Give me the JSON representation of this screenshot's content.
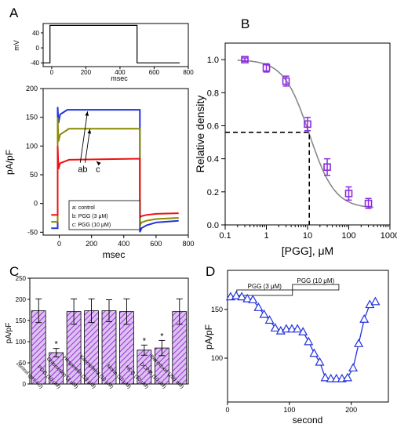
{
  "chart_data": [
    {
      "panel": "A",
      "part": "voltage-protocol",
      "type": "line",
      "xlabel": "msec",
      "ylabel": "mV",
      "xlim": [
        -50,
        800
      ],
      "ylim": [
        -50,
        65
      ],
      "xticks": [
        "0",
        "200",
        "400",
        "600",
        "800"
      ],
      "yticks": [
        "-40",
        "0",
        "40"
      ],
      "series": [
        {
          "x": [
            -50,
            -10,
            -10,
            500,
            500,
            750
          ],
          "values": [
            -40,
            -40,
            60,
            60,
            -40,
            -40
          ],
          "color": "#000000"
        }
      ]
    },
    {
      "panel": "A",
      "part": "current-traces",
      "type": "line",
      "xlabel": "msec",
      "ylabel": "pA/pF",
      "xlim": [
        -100,
        800
      ],
      "ylim": [
        -55,
        200
      ],
      "xticks": [
        "0",
        "200",
        "400",
        "600",
        "800"
      ],
      "yticks": [
        "-50",
        "0",
        "50",
        "100",
        "150",
        "200"
      ],
      "trace_labels": [
        "a",
        "b",
        "c"
      ],
      "legend": {
        "position": "bottom-right",
        "entries": [
          "a: control",
          "b: PGG (3 μM)",
          "c: PGG (10 μM)"
        ]
      },
      "series": [
        {
          "name": "a: control",
          "color": "#2233dd",
          "x": [
            -50,
            -10,
            -10,
            -5,
            5,
            50,
            500,
            500,
            510,
            540,
            600,
            740
          ],
          "values": [
            -43,
            -43,
            168,
            140,
            155,
            163,
            163,
            -50,
            -43,
            -38,
            -33,
            -30
          ]
        },
        {
          "name": "b: PGG (3 μM)",
          "color": "#8a8a00",
          "x": [
            -50,
            -10,
            -10,
            -5,
            5,
            60,
            500,
            500,
            510,
            540,
            600,
            740
          ],
          "values": [
            -32,
            -32,
            150,
            108,
            120,
            130,
            130,
            -38,
            -33,
            -30,
            -27,
            -25
          ]
        },
        {
          "name": "c: PGG (10 μM)",
          "color": "#ee1111",
          "x": [
            -50,
            -10,
            -10,
            -5,
            5,
            60,
            500,
            500,
            510,
            540,
            600,
            740
          ],
          "values": [
            -20,
            -20,
            100,
            60,
            70,
            76,
            78,
            -24,
            -22,
            -20,
            -18,
            -17
          ]
        }
      ]
    },
    {
      "panel": "B",
      "type": "scatter",
      "xlabel": "[PGG], μM",
      "ylabel": "Relative density",
      "xscale": "log",
      "xlim": [
        0.1,
        1000
      ],
      "ylim": [
        0,
        1.1
      ],
      "xticks": [
        "0.1",
        "1",
        "10",
        "100",
        "1000"
      ],
      "yticks": [
        "0.0",
        "0.2",
        "0.4",
        "0.6",
        "0.8",
        "1.0"
      ],
      "series": [
        {
          "x": [
            0.3,
            1,
            3,
            10,
            30,
            100,
            300
          ],
          "values": [
            1.0,
            0.95,
            0.87,
            0.61,
            0.35,
            0.19,
            0.13
          ],
          "error": [
            0.01,
            0.025,
            0.03,
            0.04,
            0.05,
            0.04,
            0.03
          ],
          "color": "#8a2be2"
        }
      ],
      "fit": {
        "type": "hill",
        "top": 1.0,
        "bottom": 0.1,
        "ic50": 11.0,
        "hill": 1.4,
        "color": "#888888"
      },
      "reference": {
        "x": 11.0,
        "y": 0.56
      }
    },
    {
      "panel": "C",
      "type": "bar",
      "ylabel": "pA/pF",
      "ylim": [
        0,
        250
      ],
      "yticks": [
        "0",
        "50",
        "100",
        "150",
        "200",
        "250"
      ],
      "categories": [
        "control (pH 4.0)",
        "PGG (10 μM)",
        "Chlorotoxin (1 μM)",
        "Hesperetin (10 μM)",
        "Kaempferol (10 μM)",
        "Morin (10 μM)",
        "HCQ (10 μM)",
        "DCPIB (10 μM)",
        "Iberiotoxin (200 nM)"
      ],
      "values": [
        173,
        74,
        171,
        173,
        173,
        171,
        80,
        85,
        171
      ],
      "error": [
        28,
        10,
        30,
        28,
        26,
        30,
        12,
        18,
        30
      ],
      "significant": [
        "",
        "*",
        "",
        "",
        "",
        "",
        "*",
        "*",
        ""
      ],
      "color": "#9b30d9"
    },
    {
      "panel": "D",
      "type": "line",
      "xlabel": "second",
      "ylabel": "pA/pF",
      "xlim": [
        0,
        260
      ],
      "ylim": [
        55,
        190
      ],
      "xticks": [
        "0",
        "100",
        "200"
      ],
      "yticks": [
        "100",
        "150"
      ],
      "bars": [
        {
          "label": "PGG (3 μM)",
          "start": 15,
          "end": 105
        },
        {
          "label": "PGG (10 μM)",
          "start": 105,
          "end": 180
        }
      ],
      "series": [
        {
          "color": "#2233dd",
          "x": [
            5,
            14,
            23,
            32,
            41,
            50,
            59,
            68,
            77,
            86,
            95,
            104,
            113,
            122,
            131,
            140,
            149,
            158,
            167,
            176,
            185,
            194,
            203,
            212,
            221,
            230,
            239
          ],
          "values": [
            163,
            164,
            163,
            161,
            160,
            152,
            145,
            139,
            131,
            128,
            130,
            130,
            130,
            127,
            117,
            105,
            96,
            80,
            79,
            79,
            79,
            80,
            90,
            115,
            140,
            155,
            158
          ]
        }
      ]
    }
  ],
  "labels": {
    "a": "A",
    "b": "B",
    "c": "C",
    "d": "D"
  }
}
